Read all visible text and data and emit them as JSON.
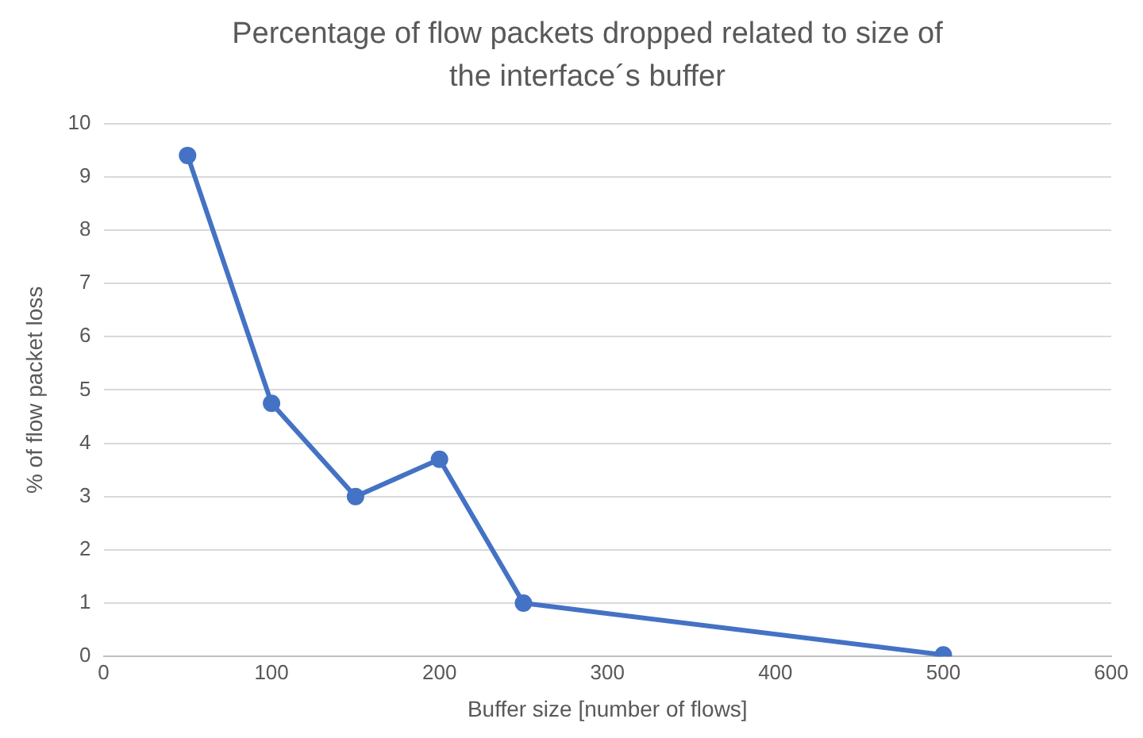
{
  "chart_data": {
    "type": "line",
    "title": "Percentage of flow packets dropped related to size of the interface´s buffer",
    "xlabel": "Buffer size [number of flows]",
    "ylabel": "% of flow packet loss",
    "x": [
      50,
      100,
      150,
      200,
      250,
      500
    ],
    "series": [
      {
        "color": "#4472c4",
        "values": [
          9.4,
          4.75,
          3.0,
          3.7,
          1.0,
          0.03
        ]
      }
    ],
    "xlim": [
      0,
      600
    ],
    "xticks": [
      0,
      100,
      200,
      300,
      400,
      500,
      600
    ],
    "ylim": [
      0,
      10
    ],
    "yticks": [
      0,
      1,
      2,
      3,
      4,
      5,
      6,
      7,
      8,
      9,
      10
    ],
    "grid": "y",
    "legend": false,
    "marker": "circle",
    "line_style": "solid"
  }
}
